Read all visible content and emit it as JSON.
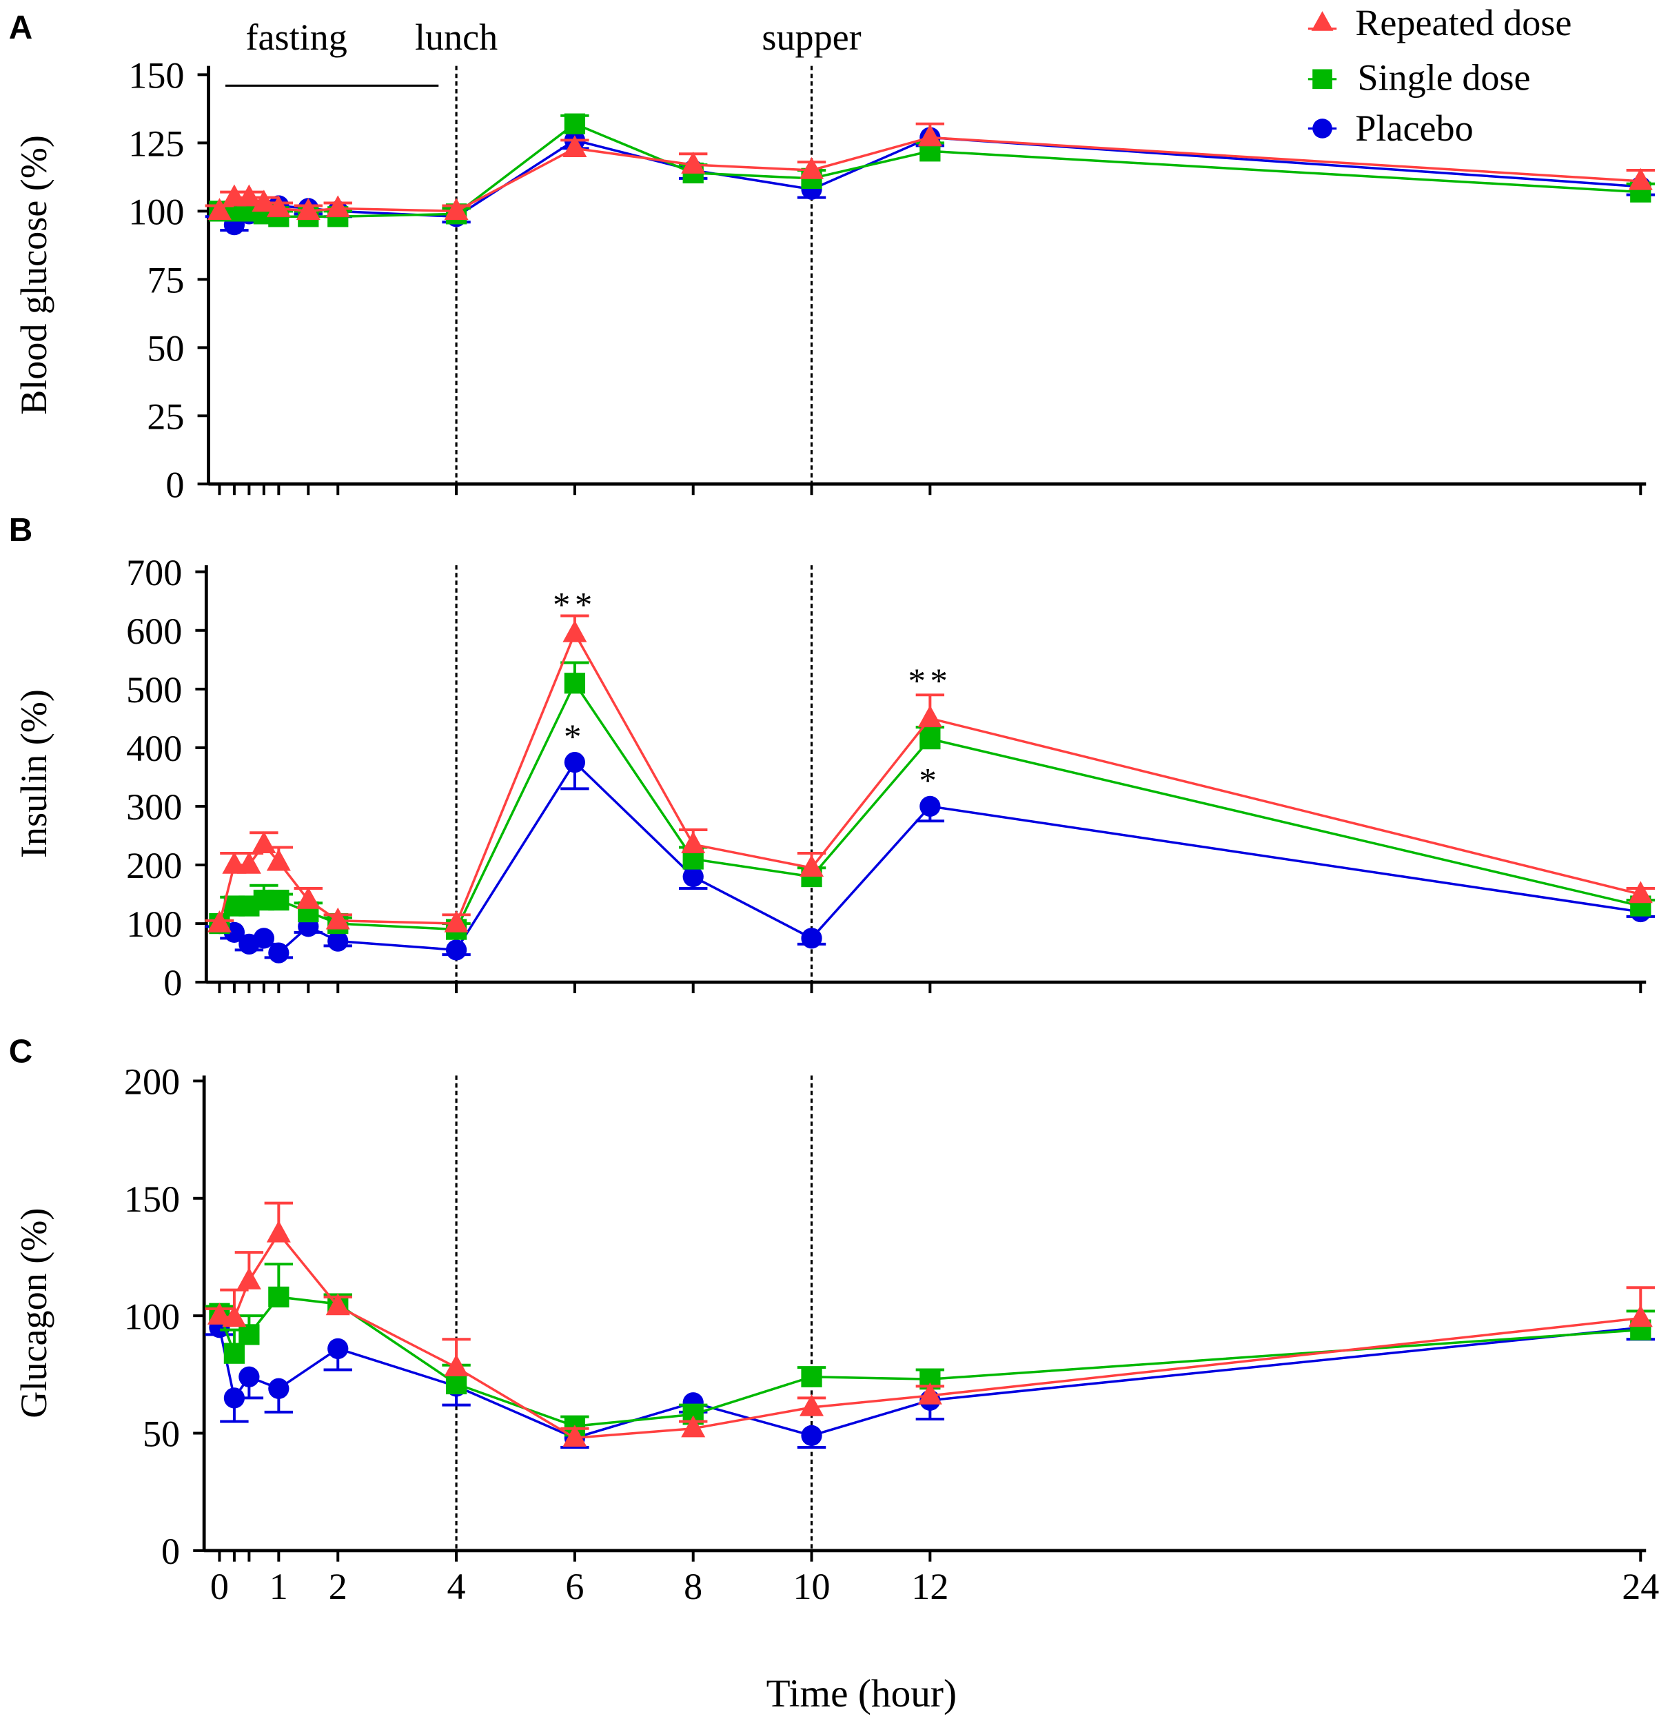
{
  "chart_data": [
    {
      "type": "line",
      "panel_label": "A",
      "ylabel": "Blood  glucose  (%)",
      "ylim": [
        0,
        150
      ],
      "yticks": [
        "0",
        "25",
        "50",
        "75",
        "100",
        "125",
        "150"
      ],
      "ytick_values": [
        0,
        25,
        50,
        75,
        100,
        125,
        150
      ],
      "x": [
        0,
        0.25,
        0.5,
        0.75,
        1,
        1.5,
        2,
        4,
        6,
        8,
        10,
        12,
        24
      ],
      "series": [
        {
          "name": "Repeated dose",
          "values": [
            100,
            105,
            105,
            103,
            101,
            100,
            101,
            100,
            123,
            117,
            115,
            127,
            111
          ],
          "err": [
            2,
            2,
            2,
            2,
            2,
            2,
            2,
            2,
            3,
            4,
            3,
            5,
            4
          ]
        },
        {
          "name": "Single  dose",
          "values": [
            100,
            100,
            100,
            99,
            98,
            98,
            98,
            99,
            132,
            114,
            112,
            122,
            107
          ],
          "err": [
            2,
            2,
            2,
            2,
            2,
            2,
            2,
            2,
            3,
            3,
            3,
            3,
            3
          ]
        },
        {
          "name": "Placebo",
          "values": [
            100,
            95,
            99,
            101,
            102,
            101,
            100,
            98,
            126,
            115,
            108,
            127,
            109
          ],
          "err": [
            2,
            2,
            2,
            2,
            2,
            2,
            2,
            2,
            3,
            3,
            3,
            3,
            3
          ]
        }
      ],
      "annotations": [
        {
          "text": "fasting",
          "x": 1.3
        },
        {
          "text": "lunch",
          "x": 4
        },
        {
          "text": "supper",
          "x": 10
        }
      ],
      "fasting_bar": [
        0.1,
        3.7
      ],
      "vlines": [
        4,
        10
      ],
      "legend": "top-right"
    },
    {
      "type": "line",
      "panel_label": "B",
      "ylabel": "Insulin  (%)",
      "ylim": [
        0,
        700
      ],
      "yticks": [
        "0",
        "100",
        "200",
        "300",
        "400",
        "500",
        "600",
        "700"
      ],
      "ytick_values": [
        0,
        100,
        200,
        300,
        400,
        500,
        600,
        700
      ],
      "x": [
        0,
        0.25,
        0.5,
        0.75,
        1,
        1.5,
        2,
        4,
        6,
        8,
        10,
        12,
        24
      ],
      "series": [
        {
          "name": "Repeated dose",
          "values": [
            100,
            200,
            200,
            235,
            205,
            140,
            105,
            100,
            595,
            235,
            195,
            450,
            150
          ],
          "err": [
            5,
            20,
            20,
            20,
            25,
            20,
            10,
            15,
            30,
            25,
            25,
            40,
            10
          ]
        },
        {
          "name": "Single  dose",
          "values": [
            100,
            130,
            130,
            140,
            140,
            120,
            100,
            90,
            510,
            210,
            180,
            415,
            130
          ],
          "err": [
            5,
            15,
            15,
            25,
            10,
            15,
            10,
            10,
            35,
            20,
            15,
            20,
            10
          ]
        },
        {
          "name": "Placebo",
          "values": [
            100,
            85,
            65,
            75,
            50,
            95,
            70,
            55,
            375,
            180,
            75,
            300,
            120
          ],
          "err": [
            5,
            10,
            10,
            10,
            8,
            10,
            8,
            8,
            45,
            20,
            10,
            25,
            8
          ]
        }
      ],
      "significance": [
        {
          "x": 6,
          "text": "**",
          "y": 650
        },
        {
          "x": 6,
          "text": "*",
          "y": 425
        },
        {
          "x": 12,
          "text": "**",
          "y": 520
        },
        {
          "x": 12,
          "text": "*",
          "y": 350
        }
      ],
      "vlines": [
        4,
        10
      ]
    },
    {
      "type": "line",
      "panel_label": "C",
      "ylabel": "Glucagon  (%)",
      "xlabel": "Time  (hour)",
      "ylim": [
        0,
        200
      ],
      "yticks": [
        "0",
        "50",
        "100",
        "150",
        "200"
      ],
      "ytick_values": [
        0,
        50,
        100,
        150,
        200
      ],
      "xticks": [
        "0",
        "1",
        "2",
        "4",
        "6",
        "8",
        "10",
        "12",
        "24"
      ],
      "xtick_values": [
        0,
        1,
        2,
        4,
        6,
        8,
        10,
        12,
        24
      ],
      "x": [
        0,
        0.25,
        0.5,
        1,
        2,
        4,
        6,
        8,
        10,
        12,
        24
      ],
      "series": [
        {
          "name": "Repeated dose",
          "values": [
            100,
            99,
            115,
            135,
            104,
            78,
            48,
            52,
            61,
            66,
            99
          ],
          "err": [
            3,
            12,
            12,
            13,
            4,
            12,
            4,
            3,
            4,
            4,
            13
          ]
        },
        {
          "name": "Single  dose",
          "values": [
            101,
            84,
            92,
            108,
            105,
            71,
            53,
            58,
            74,
            73,
            94
          ],
          "err": [
            3,
            10,
            8,
            14,
            4,
            8,
            4,
            4,
            4,
            4,
            8
          ]
        },
        {
          "name": "Placebo",
          "values": [
            95,
            65,
            74,
            69,
            86,
            70,
            48,
            63,
            49,
            64,
            95
          ],
          "err": [
            3,
            10,
            9,
            10,
            9,
            8,
            4,
            4,
            5,
            8,
            5
          ]
        }
      ],
      "vlines": [
        4,
        10
      ]
    }
  ],
  "legend": [
    {
      "name": "Repeated dose",
      "color": "#ff4040",
      "marker": "triangle"
    },
    {
      "name": "Single  dose",
      "color": "#00b800",
      "marker": "square"
    },
    {
      "name": "Placebo",
      "color": "#0000e0",
      "marker": "circle"
    }
  ]
}
